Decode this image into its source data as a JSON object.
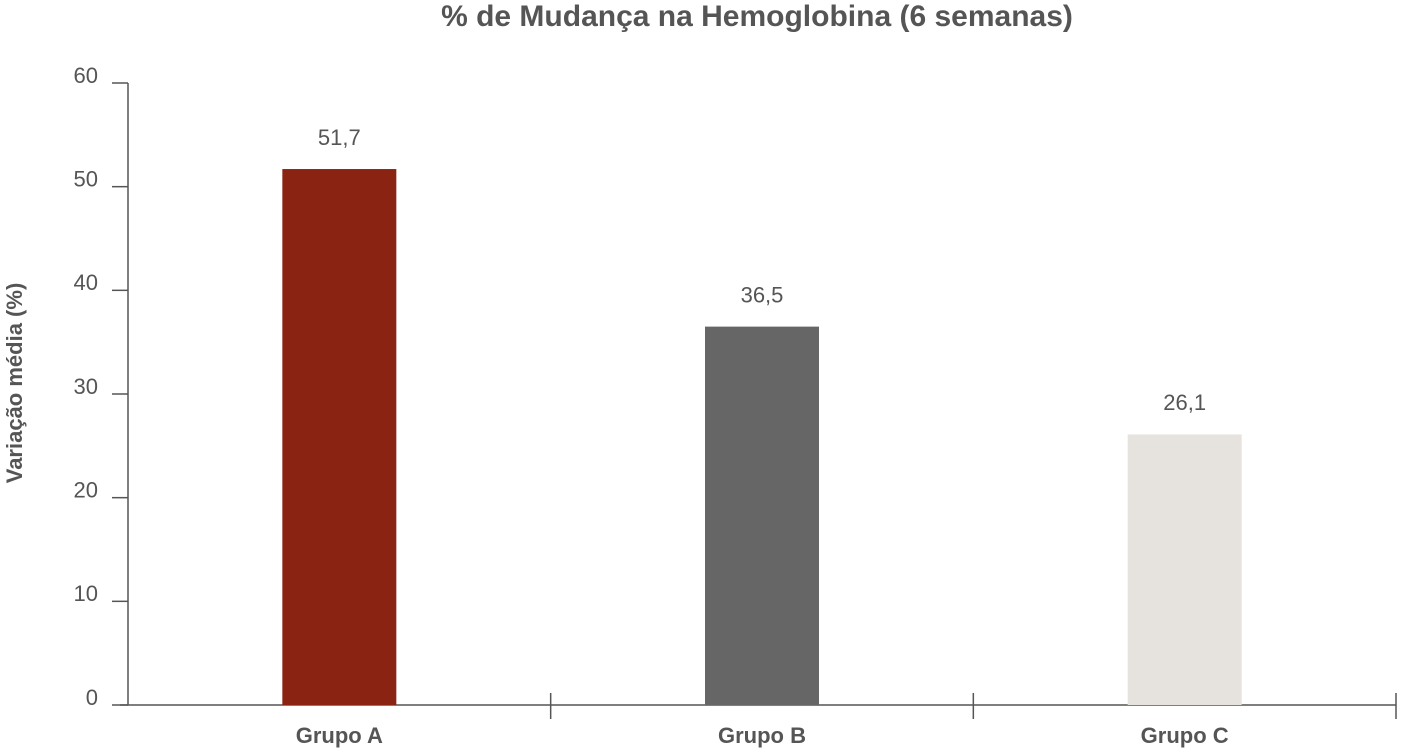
{
  "chart_data": {
    "type": "bar",
    "title": "% de Mudança na Hemoglobina (6 semanas)",
    "y_label": "Variação média (%)",
    "categories": [
      "Grupo A",
      "Grupo B",
      "Grupo C"
    ],
    "values": [
      51.7,
      36.5,
      26.1
    ],
    "value_labels": [
      "51,7",
      "36,5",
      "26,1"
    ],
    "colors": [
      "#8b2313",
      "#666666",
      "#e6e3de"
    ],
    "ylim": [
      0,
      60
    ],
    "yticks": [
      0,
      10,
      20,
      30,
      40,
      50,
      60
    ],
    "grid": false
  }
}
